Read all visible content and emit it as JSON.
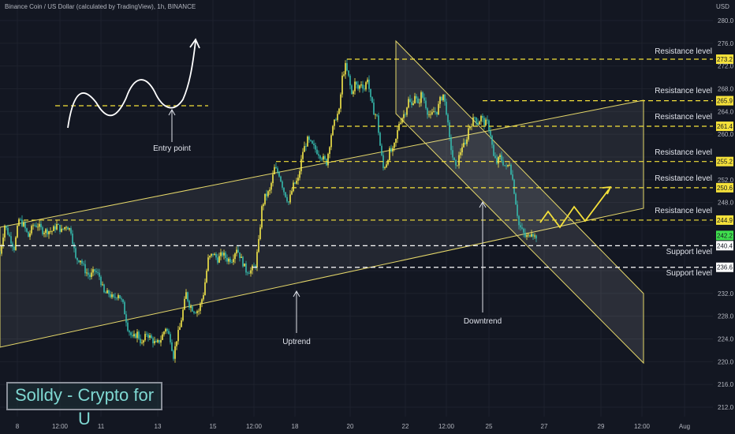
{
  "header": {
    "symbol_title": "Binance Coin / US Dollar (calculated by TradingView), 1h, BINANCE",
    "currency": "USD"
  },
  "brand": {
    "text": "Solldy - Crypto for U",
    "color": "#7fd8d2"
  },
  "colors": {
    "background": "#131722",
    "candle_up": "#f7ea4a",
    "candle_down": "#35b9ad",
    "channel_line": "#e6d86a",
    "level_line": "#f5e13a",
    "support_line": "#ffffff",
    "last_price_tag": "#3fe04d"
  },
  "chart_data": {
    "type": "candlestick",
    "ylim": [
      210,
      282
    ],
    "y_ticks": [
      212.0,
      216.0,
      220.0,
      224.0,
      228.0,
      232.0,
      236.0,
      240.0,
      244.0,
      248.0,
      252.0,
      256.0,
      260.0,
      264.0,
      268.0,
      272.0,
      276.0,
      280.0
    ],
    "x_ticks": [
      "8",
      "12:00",
      "11",
      "13",
      "15",
      "12:00",
      "18",
      "20",
      "22",
      "12:00",
      "25",
      "27",
      "29",
      "12:00",
      "Aug"
    ],
    "close_path": [
      [
        0,
        239
      ],
      [
        6,
        244
      ],
      [
        12,
        242
      ],
      [
        18,
        240
      ],
      [
        24,
        245
      ],
      [
        30,
        244
      ],
      [
        36,
        242
      ],
      [
        42,
        244
      ],
      [
        48,
        244
      ],
      [
        54,
        243
      ],
      [
        60,
        243
      ],
      [
        66,
        243
      ],
      [
        72,
        244
      ],
      [
        78,
        243
      ],
      [
        84,
        244
      ],
      [
        90,
        243
      ],
      [
        96,
        238
      ],
      [
        102,
        238
      ],
      [
        108,
        236
      ],
      [
        114,
        235
      ],
      [
        120,
        236
      ],
      [
        126,
        235
      ],
      [
        132,
        232
      ],
      [
        138,
        232
      ],
      [
        144,
        231
      ],
      [
        150,
        232
      ],
      [
        156,
        230
      ],
      [
        162,
        226
      ],
      [
        168,
        224
      ],
      [
        174,
        225
      ],
      [
        180,
        223
      ],
      [
        186,
        225
      ],
      [
        192,
        224
      ],
      [
        198,
        223
      ],
      [
        204,
        224
      ],
      [
        210,
        226
      ],
      [
        216,
        224
      ],
      [
        220,
        221
      ],
      [
        224,
        224
      ],
      [
        228,
        226
      ],
      [
        232,
        229
      ],
      [
        236,
        232
      ],
      [
        240,
        230
      ],
      [
        246,
        229
      ],
      [
        252,
        229
      ],
      [
        258,
        232
      ],
      [
        264,
        238
      ],
      [
        270,
        239
      ],
      [
        276,
        238
      ],
      [
        282,
        239
      ],
      [
        288,
        238
      ],
      [
        294,
        238
      ],
      [
        300,
        240
      ],
      [
        306,
        238
      ],
      [
        312,
        236
      ],
      [
        318,
        236
      ],
      [
        324,
        237
      ],
      [
        328,
        241
      ],
      [
        332,
        247
      ],
      [
        336,
        249
      ],
      [
        342,
        250
      ],
      [
        348,
        254
      ],
      [
        354,
        253
      ],
      [
        360,
        250
      ],
      [
        366,
        248
      ],
      [
        372,
        251
      ],
      [
        378,
        252
      ],
      [
        384,
        257
      ],
      [
        390,
        259
      ],
      [
        396,
        258
      ],
      [
        402,
        257
      ],
      [
        408,
        256
      ],
      [
        414,
        255
      ],
      [
        420,
        260
      ],
      [
        426,
        263
      ],
      [
        430,
        264
      ],
      [
        434,
        270
      ],
      [
        438,
        272
      ],
      [
        442,
        270
      ],
      [
        446,
        267
      ],
      [
        450,
        269
      ],
      [
        454,
        268
      ],
      [
        458,
        269
      ],
      [
        462,
        268
      ],
      [
        466,
        270
      ],
      [
        470,
        266
      ],
      [
        474,
        264
      ],
      [
        478,
        263
      ],
      [
        482,
        258
      ],
      [
        486,
        254
      ],
      [
        490,
        255
      ],
      [
        494,
        257
      ],
      [
        498,
        257
      ],
      [
        502,
        259
      ],
      [
        506,
        262
      ],
      [
        510,
        263
      ],
      [
        514,
        264
      ],
      [
        518,
        266
      ],
      [
        522,
        265
      ],
      [
        526,
        267
      ],
      [
        530,
        265
      ],
      [
        534,
        267
      ],
      [
        538,
        266
      ],
      [
        542,
        264
      ],
      [
        546,
        263
      ],
      [
        550,
        264
      ],
      [
        554,
        264
      ],
      [
        558,
        266
      ],
      [
        562,
        267
      ],
      [
        566,
        264
      ],
      [
        570,
        259
      ],
      [
        574,
        256
      ],
      [
        578,
        254
      ],
      [
        582,
        256
      ],
      [
        586,
        258
      ],
      [
        590,
        258
      ],
      [
        594,
        261
      ],
      [
        598,
        262
      ],
      [
        602,
        263
      ],
      [
        606,
        262
      ],
      [
        610,
        263
      ],
      [
        614,
        262
      ],
      [
        618,
        262
      ],
      [
        622,
        260
      ],
      [
        626,
        256
      ],
      [
        630,
        255
      ],
      [
        634,
        256
      ],
      [
        638,
        255
      ],
      [
        642,
        254
      ],
      [
        646,
        255
      ],
      [
        650,
        252
      ],
      [
        654,
        248
      ],
      [
        658,
        244
      ],
      [
        662,
        243
      ],
      [
        666,
        242
      ],
      [
        670,
        242
      ],
      [
        674,
        243
      ],
      [
        678,
        242
      ],
      [
        682,
        242.2
      ]
    ],
    "levels": [
      {
        "label": "Resistance level",
        "price": 273.2,
        "tag": "273.2",
        "style": "resistance"
      },
      {
        "label": "Resistance level",
        "price": 265.9,
        "tag": "265.9",
        "style": "resistance"
      },
      {
        "label": "Resistance level",
        "price": 261.4,
        "tag": "261.4",
        "style": "resistance"
      },
      {
        "label": "Resistance level",
        "price": 255.2,
        "tag": "255.2",
        "style": "resistance"
      },
      {
        "label": "Resistance level",
        "price": 250.6,
        "tag": "250.6",
        "style": "resistance"
      },
      {
        "label": "Resistance level",
        "price": 244.9,
        "tag": "244.9",
        "style": "resistance"
      },
      {
        "label": "Support level",
        "price": 240.4,
        "tag": "240.4",
        "style": "support"
      },
      {
        "label": "Support level",
        "price": 236.6,
        "tag": "236.6",
        "style": "support"
      }
    ],
    "last_price": {
      "price": 242.2,
      "tag": "242.2"
    },
    "annotations": {
      "entry_point": "Entry point",
      "uptrend": "Uptrend",
      "downtrend": "Downtrend"
    }
  }
}
